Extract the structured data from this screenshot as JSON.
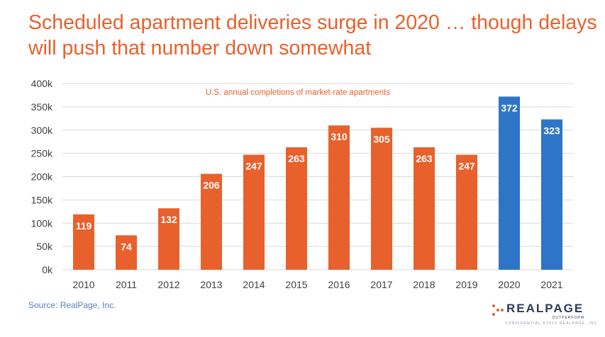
{
  "title_lines": [
    "Scheduled apartment deliveries surge in 2020 … though delays",
    "will push that number down somewhat"
  ],
  "source": "Source: RealPage, Inc.",
  "logo": {
    "brand": "REALPAGE",
    "tagline": "OUTPERFORM",
    "confidential": "CONFIDENTIAL ©2019 REALPAGE, INC."
  },
  "colors": {
    "title": "#E8612C",
    "bar_primary": "#E8612C",
    "bar_highlight": "#2E75C8",
    "label_text": "#ffffff",
    "annotation": "#E8612C",
    "grid": "#d9d9d9"
  },
  "chart_data": {
    "type": "bar",
    "annotation": "U.S. annual completions of market-rate apartments",
    "categories": [
      "2010",
      "2011",
      "2012",
      "2013",
      "2014",
      "2015",
      "2016",
      "2017",
      "2018",
      "2019",
      "2020",
      "2021"
    ],
    "values": [
      119,
      74,
      132,
      206,
      247,
      263,
      310,
      305,
      263,
      247,
      372,
      323
    ],
    "data_labels": [
      "119",
      "74",
      "132",
      "206",
      "247",
      "263",
      "310",
      "305",
      "263",
      "247",
      "372",
      "323"
    ],
    "highlighted_categories": [
      "2020",
      "2021"
    ],
    "yticks": [
      0,
      50,
      100,
      150,
      200,
      250,
      300,
      350,
      400
    ],
    "ytick_labels": [
      "0k",
      "50k",
      "100k",
      "150k",
      "200k",
      "250k",
      "300k",
      "350k",
      "400k"
    ],
    "ylim": [
      0,
      400
    ],
    "grid": true,
    "xlabel": "",
    "ylabel": ""
  }
}
